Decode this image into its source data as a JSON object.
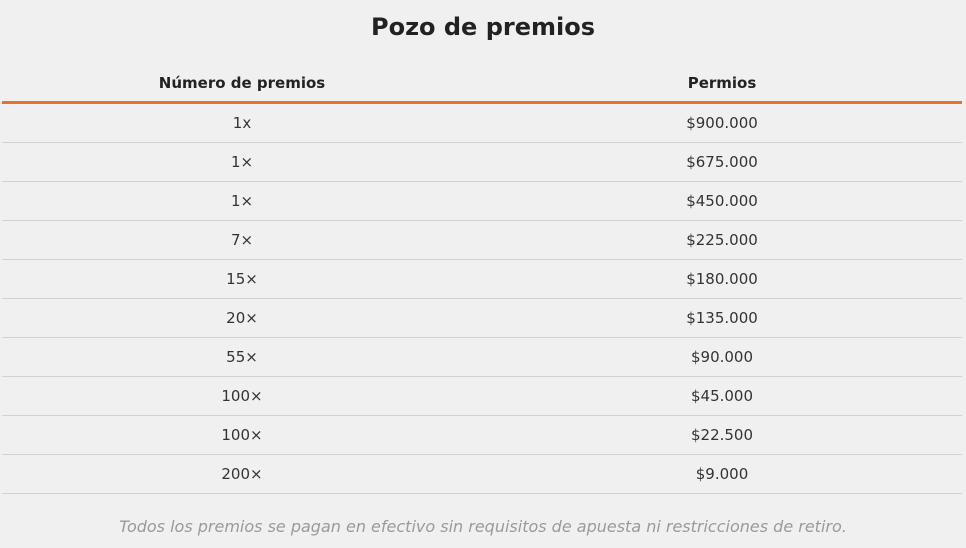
{
  "title": "Pozo de premios",
  "table": {
    "headers": {
      "count": "Número de premios",
      "prize": "Permios"
    },
    "rows": [
      {
        "count": "1x",
        "prize": "$900.000"
      },
      {
        "count": "1×",
        "prize": "$675.000"
      },
      {
        "count": "1×",
        "prize": "$450.000"
      },
      {
        "count": "7×",
        "prize": "$225.000"
      },
      {
        "count": "15×",
        "prize": "$180.000"
      },
      {
        "count": "20×",
        "prize": "$135.000"
      },
      {
        "count": "55×",
        "prize": "$90.000"
      },
      {
        "count": "100×",
        "prize": "$45.000"
      },
      {
        "count": "100×",
        "prize": "$22.500"
      },
      {
        "count": "200×",
        "prize": "$9.000"
      }
    ]
  },
  "footnote": "Todos los premios se pagan en efectivo sin requisitos de apuesta ni restricciones de retiro.",
  "colors": {
    "accent": "#e8732a",
    "background": "#f0f0f0",
    "divider": "#d2d2d2"
  }
}
